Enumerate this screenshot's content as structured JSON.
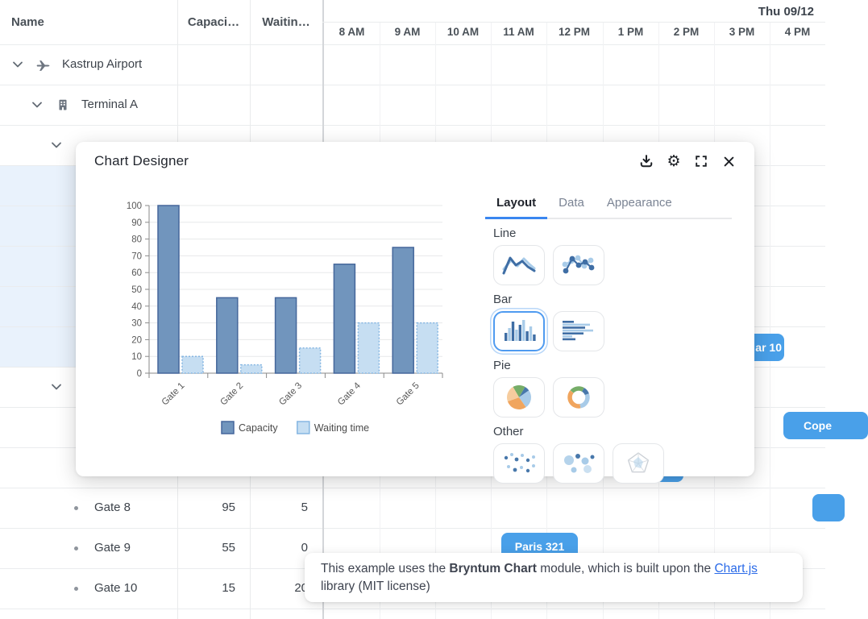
{
  "scheduler": {
    "date_label": "Thu 09/12",
    "hours": [
      "8 AM",
      "9 AM",
      "10 AM",
      "11 AM",
      "12 PM",
      "1 PM",
      "2 PM",
      "3 PM",
      "4 PM"
    ],
    "columns": {
      "name": "Name",
      "capacity": "Capaci…",
      "waiting": "Waitin…"
    },
    "tree": {
      "airport": {
        "label": "Kastrup Airport"
      },
      "terminal": {
        "label": "Terminal A"
      }
    },
    "gates": [
      {
        "name": "Gate 8",
        "capacity": "95",
        "waiting": "5"
      },
      {
        "name": "Gate 9",
        "capacity": "55",
        "waiting": "0"
      },
      {
        "name": "Gate 10",
        "capacity": "15",
        "waiting": "20"
      }
    ],
    "events": {
      "clipped_left": "ar 10",
      "clipped_right": "Cope",
      "paris": "Paris 321"
    },
    "colors": {
      "event": "#49a0e9",
      "selection": "#e9f2fc"
    }
  },
  "designer": {
    "title": "Chart Designer",
    "tabs": [
      {
        "label": "Layout",
        "active": true
      },
      {
        "label": "Data",
        "active": false
      },
      {
        "label": "Appearance",
        "active": false
      }
    ],
    "sections": [
      {
        "label": "Line",
        "items": [
          "line",
          "line-points"
        ]
      },
      {
        "label": "Bar",
        "items": [
          "bar-vertical",
          "bar-horizontal"
        ],
        "selected": "bar-vertical"
      },
      {
        "label": "Pie",
        "items": [
          "pie",
          "donut"
        ]
      },
      {
        "label": "Other",
        "items": [
          "scatter",
          "bubble",
          "radar"
        ]
      }
    ],
    "accent": "#3a86f0"
  },
  "chart_data": {
    "type": "bar",
    "categories": [
      "Gate 1",
      "Gate 2",
      "Gate 3",
      "Gate 4",
      "Gate 5"
    ],
    "series": [
      {
        "name": "Capacity",
        "values": [
          100,
          45,
          45,
          65,
          75
        ],
        "fill": "#7195bd",
        "stroke": "#45679b"
      },
      {
        "name": "Waiting time",
        "values": [
          10,
          5,
          15,
          30,
          30
        ],
        "fill": "#c6def2",
        "stroke": "#85b6e2"
      }
    ],
    "title": "",
    "xlabel": "",
    "ylabel": "",
    "ylim": [
      0,
      100
    ],
    "ytick_step": 10,
    "grid": true,
    "legend_position": "bottom"
  },
  "tooltip": {
    "prefix": "This example uses the ",
    "bold": "Bryntum Chart",
    "middle": " module, which is built upon the ",
    "link": "Chart.js",
    "suffix": " library (MIT license)"
  }
}
